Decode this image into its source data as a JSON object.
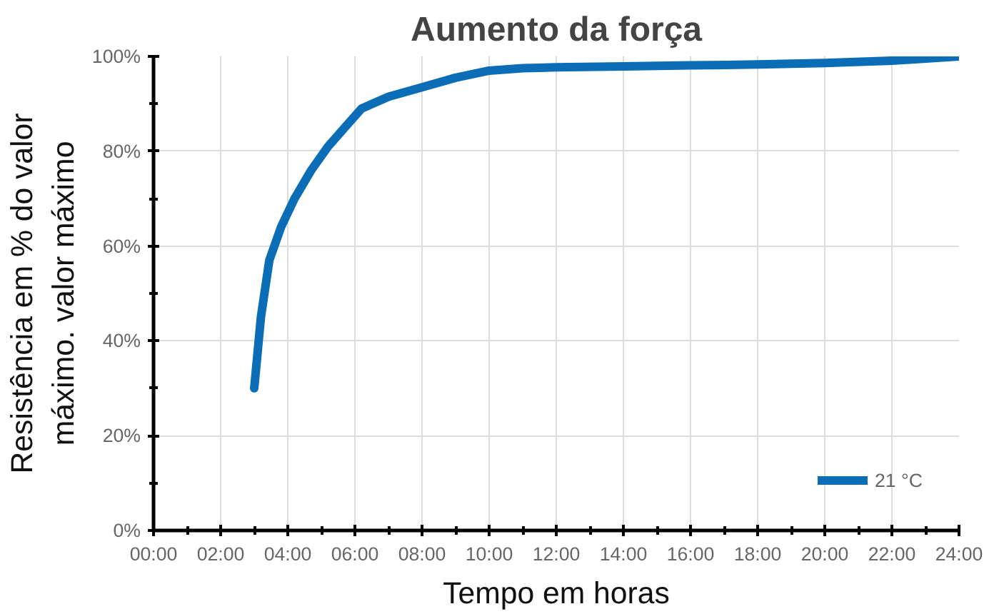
{
  "chart_data": {
    "type": "line",
    "title": "Aumento da força",
    "xlabel": "Tempo em horas",
    "ylabel": "Resistência em % do valor\nmáximo. valor máximo",
    "series": [
      {
        "name": "21 °C",
        "color": "#0a6db5",
        "x": [
          3.0,
          3.2,
          3.45,
          3.8,
          4.2,
          4.7,
          5.2,
          5.7,
          6.2,
          7.0,
          8.0,
          9.0,
          10.0,
          11.0,
          12.0,
          14.0,
          16.0,
          18.0,
          20.0,
          22.0,
          24.0
        ],
        "values": [
          30,
          45,
          57,
          64,
          70,
          76,
          81,
          85,
          89,
          91.5,
          93.5,
          95.5,
          97,
          97.5,
          97.7,
          97.9,
          98.1,
          98.3,
          98.6,
          99.1,
          100
        ]
      }
    ],
    "xlim": [
      0,
      24
    ],
    "xticks": [
      {
        "value": 0,
        "label": "00:00"
      },
      {
        "value": 1,
        "label": null
      },
      {
        "value": 2,
        "label": "02:00"
      },
      {
        "value": 3,
        "label": null
      },
      {
        "value": 4,
        "label": "04:00"
      },
      {
        "value": 5,
        "label": null
      },
      {
        "value": 6,
        "label": "06:00"
      },
      {
        "value": 7,
        "label": null
      },
      {
        "value": 8,
        "label": "08:00"
      },
      {
        "value": 9,
        "label": null
      },
      {
        "value": 10,
        "label": "10:00"
      },
      {
        "value": 11,
        "label": null
      },
      {
        "value": 12,
        "label": "12:00"
      },
      {
        "value": 13,
        "label": null
      },
      {
        "value": 14,
        "label": "14:00"
      },
      {
        "value": 15,
        "label": null
      },
      {
        "value": 16,
        "label": "16:00"
      },
      {
        "value": 17,
        "label": null
      },
      {
        "value": 18,
        "label": "18:00"
      },
      {
        "value": 19,
        "label": null
      },
      {
        "value": 20,
        "label": "20:00"
      },
      {
        "value": 21,
        "label": null
      },
      {
        "value": 22,
        "label": "22:00"
      },
      {
        "value": 23,
        "label": null
      },
      {
        "value": 24,
        "label": "24:00"
      }
    ],
    "ylim": [
      0,
      100
    ],
    "yticks": [
      {
        "value": 0,
        "label": "0%"
      },
      {
        "value": 10,
        "label": null
      },
      {
        "value": 20,
        "label": "20%"
      },
      {
        "value": 30,
        "label": null
      },
      {
        "value": 40,
        "label": "40%"
      },
      {
        "value": 50,
        "label": null
      },
      {
        "value": 60,
        "label": "60%"
      },
      {
        "value": 70,
        "label": null
      },
      {
        "value": 80,
        "label": "80%"
      },
      {
        "value": 90,
        "label": null
      },
      {
        "value": 100,
        "label": "100%"
      }
    ],
    "grid": true,
    "legend": "bottom right",
    "marker": "none",
    "line_style": "solid"
  }
}
